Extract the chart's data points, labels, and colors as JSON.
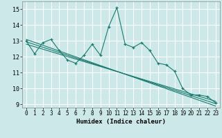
{
  "xlabel": "Humidex (Indice chaleur)",
  "ylabel": "",
  "background_color": "#cce8e8",
  "grid_color": "#ffffff",
  "line_color": "#1a7a6e",
  "xlim": [
    -0.5,
    23.5
  ],
  "ylim": [
    8.8,
    15.5
  ],
  "yticks": [
    9,
    10,
    11,
    12,
    13,
    14,
    15
  ],
  "xticks": [
    0,
    1,
    2,
    3,
    4,
    5,
    6,
    7,
    8,
    9,
    10,
    11,
    12,
    13,
    14,
    15,
    16,
    17,
    18,
    19,
    20,
    21,
    22,
    23
  ],
  "series1_x": [
    0,
    1,
    2,
    3,
    4,
    5,
    6,
    7,
    8,
    9,
    10,
    11,
    12,
    13,
    14,
    15,
    16,
    17,
    18,
    19,
    20,
    21,
    22,
    23
  ],
  "series1_y": [
    13.0,
    12.2,
    12.9,
    13.1,
    12.4,
    11.8,
    11.6,
    12.1,
    12.8,
    12.1,
    13.9,
    15.1,
    12.8,
    12.6,
    12.9,
    12.4,
    11.6,
    11.5,
    11.1,
    10.0,
    9.6,
    9.6,
    9.5,
    9.1
  ],
  "regression_lines": [
    {
      "x0": 0,
      "y0": 12.95,
      "x1": 23,
      "y1": 9.05
    },
    {
      "x0": 0,
      "y0": 12.8,
      "x1": 23,
      "y1": 9.2
    },
    {
      "x0": 0,
      "y0": 13.1,
      "x1": 23,
      "y1": 8.9
    }
  ]
}
